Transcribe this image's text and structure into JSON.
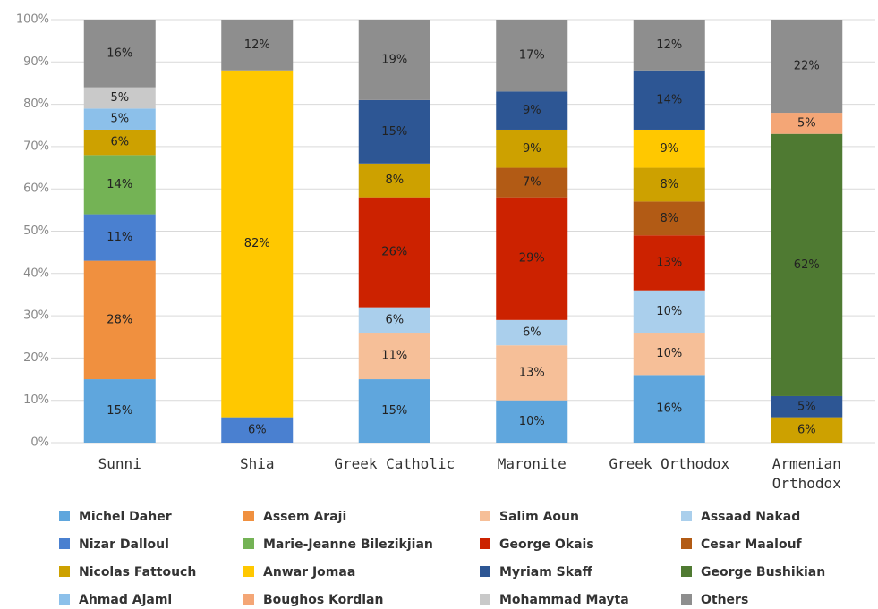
{
  "chart_data": {
    "type": "stacked-bar",
    "categories": [
      "Sunni",
      "Shia",
      "Greek Catholic",
      "Maronite",
      "Greek Orthodox",
      "Armenian Orthodox"
    ],
    "ylim": [
      0,
      100
    ],
    "yticks": [
      {
        "value": 0,
        "label": "0%"
      },
      {
        "value": 10,
        "label": "10%"
      },
      {
        "value": 20,
        "label": "20%"
      },
      {
        "value": 30,
        "label": "30%"
      },
      {
        "value": 40,
        "label": "40%"
      },
      {
        "value": 50,
        "label": "50%"
      },
      {
        "value": 60,
        "label": "60%"
      },
      {
        "value": 70,
        "label": "70%"
      },
      {
        "value": 80,
        "label": "80%"
      },
      {
        "value": 90,
        "label": "90%"
      },
      {
        "value": 100,
        "label": "100%"
      }
    ],
    "grid": true,
    "series": [
      {
        "name": "Michel Daher",
        "color": "#5fa6dd",
        "values": [
          15,
          null,
          15,
          10,
          16,
          null
        ],
        "value_labels": [
          "15%",
          null,
          "15%",
          "10%",
          "16%",
          null
        ]
      },
      {
        "name": "Assem Araji",
        "color": "#f0903f",
        "values": [
          28,
          null,
          null,
          null,
          null,
          null
        ],
        "value_labels": [
          "28%",
          null,
          null,
          null,
          null,
          null
        ]
      },
      {
        "name": "Salim Aoun",
        "color": "#f6bf98",
        "values": [
          null,
          null,
          11,
          13,
          10,
          null
        ],
        "value_labels": [
          null,
          null,
          "11%",
          "13%",
          "10%",
          null
        ]
      },
      {
        "name": "Assaad Nakad",
        "color": "#aacfec",
        "values": [
          null,
          null,
          6,
          6,
          10,
          null
        ],
        "value_labels": [
          null,
          null,
          "6%",
          "6%",
          "10%",
          null
        ]
      },
      {
        "name": "Nizar Dalloul",
        "color": "#4a80d0",
        "values": [
          11,
          6,
          null,
          null,
          null,
          null
        ],
        "value_labels": [
          "11%",
          "6%",
          null,
          null,
          null,
          null
        ]
      },
      {
        "name": "Marie-Jeanne Bilezikjian",
        "color": "#74b355",
        "values": [
          14,
          null,
          null,
          null,
          null,
          null
        ],
        "value_labels": [
          "14%",
          null,
          null,
          null,
          null,
          null
        ]
      },
      {
        "name": "George Okais",
        "color": "#cc2200",
        "values": [
          null,
          null,
          26,
          29,
          13,
          null
        ],
        "value_labels": [
          null,
          null,
          "26%",
          "29%",
          "13%",
          null
        ]
      },
      {
        "name": "Cesar Maalouf",
        "color": "#b25b15",
        "values": [
          null,
          null,
          null,
          7,
          8,
          null
        ],
        "value_labels": [
          null,
          null,
          null,
          "7%",
          "8%",
          null
        ]
      },
      {
        "name": "Nicolas Fattouch",
        "color": "#cda100",
        "values": [
          6,
          null,
          8,
          9,
          8,
          6
        ],
        "value_labels": [
          "6%",
          null,
          "8%",
          "9%",
          "8%",
          "6%"
        ]
      },
      {
        "name": "Anwar Jomaa",
        "color": "#ffc800",
        "values": [
          null,
          82,
          null,
          null,
          9,
          null
        ],
        "value_labels": [
          null,
          "82%",
          null,
          null,
          "9%",
          null
        ]
      },
      {
        "name": "Myriam Skaff",
        "color": "#2d5694",
        "values": [
          null,
          null,
          15,
          9,
          14,
          5
        ],
        "value_labels": [
          null,
          null,
          "15%",
          "9%",
          "14%",
          "5%"
        ]
      },
      {
        "name": "George Bushikian",
        "color": "#4f7a32",
        "values": [
          null,
          null,
          null,
          null,
          null,
          62
        ],
        "value_labels": [
          null,
          null,
          null,
          null,
          null,
          "62%"
        ]
      },
      {
        "name": "Ahmad Ajami",
        "color": "#8cc0ea",
        "values": [
          5,
          null,
          null,
          null,
          null,
          null
        ],
        "value_labels": [
          "5%",
          null,
          null,
          null,
          null,
          null
        ]
      },
      {
        "name": "Boughos Kordian",
        "color": "#f4a676",
        "values": [
          null,
          null,
          null,
          null,
          null,
          5
        ],
        "value_labels": [
          null,
          null,
          null,
          null,
          null,
          "5%"
        ]
      },
      {
        "name": "Mohammad Mayta",
        "color": "#c9c9c9",
        "values": [
          5,
          null,
          null,
          null,
          null,
          null
        ],
        "value_labels": [
          "5%",
          null,
          null,
          null,
          null,
          null
        ]
      },
      {
        "name": "Others",
        "color": "#8e8e8e",
        "values": [
          16,
          12,
          19,
          17,
          12,
          22
        ],
        "value_labels": [
          "16%",
          "12%",
          "19%",
          "17%",
          "12%",
          "22%"
        ]
      }
    ]
  }
}
